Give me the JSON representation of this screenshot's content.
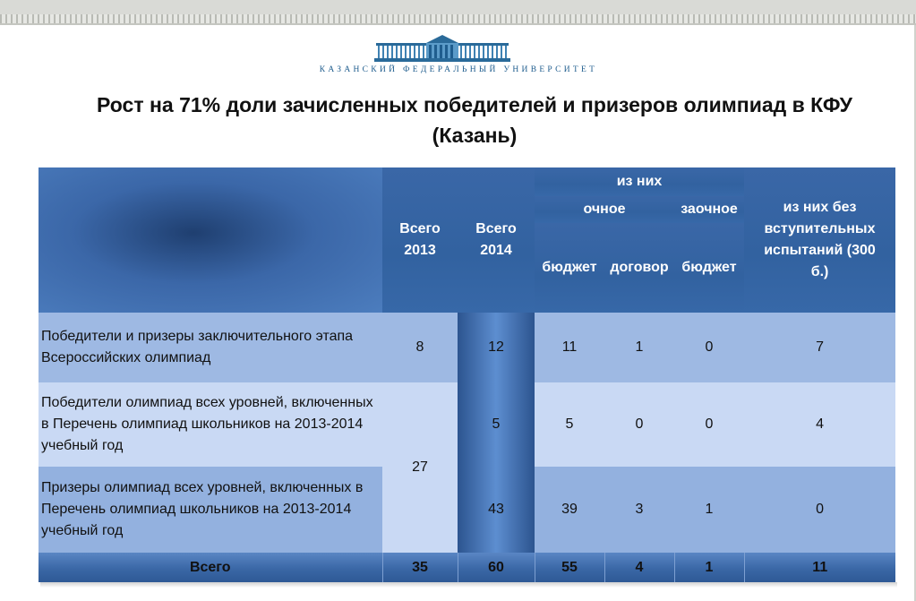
{
  "header": {
    "university_name": "КАЗАНСКИЙ ФЕДЕРАЛЬНЫЙ УНИВЕРСИТЕТ",
    "title": "Рост на 71% доли зачисленных победителей и призеров олимпиад в КФУ (Казань)",
    "logo_icon": "university-building-icon"
  },
  "table": {
    "headers": {
      "total_2013": "Всего 2013",
      "total_2014": "Всего 2014",
      "of_them": "из них",
      "full_time": "очное",
      "part_time": "заочное",
      "budget": "бюджет",
      "contract": "договор",
      "budget_part": "бюджет",
      "no_exams": "из них без вступительных испытаний (300 б.)"
    },
    "rows": [
      {
        "label": "Победители и призеры заключительного этапа Всероссийских олимпиад",
        "total_2013": "8",
        "total_2014": "12",
        "full_budget": "11",
        "full_contract": "1",
        "part_budget": "0",
        "no_exams": "7"
      },
      {
        "label": "Победители олимпиад всех уровней, включенных в Перечень олимпиад школьников на 2013-2014 учебный год",
        "total_2013": "27",
        "total_2014": "5",
        "full_budget": "5",
        "full_contract": "0",
        "part_budget": "0",
        "no_exams": "4"
      },
      {
        "label": "Призеры олимпиад всех уровней, включенных в Перечень олимпиад школьников на 2013-2014 учебный год",
        "total_2014": "43",
        "full_budget": "39",
        "full_contract": "3",
        "part_budget": "1",
        "no_exams": "0"
      }
    ],
    "totals": {
      "label": "Всего",
      "total_2013": "35",
      "total_2014": "60",
      "full_budget": "55",
      "full_contract": "4",
      "part_budget": "1",
      "no_exams": "11"
    }
  },
  "colors": {
    "header_blue": "#3d6cae",
    "row_light": "#c9d9f4",
    "row_mid": "#9eb9e3",
    "brand_text": "#1f5d8e"
  }
}
